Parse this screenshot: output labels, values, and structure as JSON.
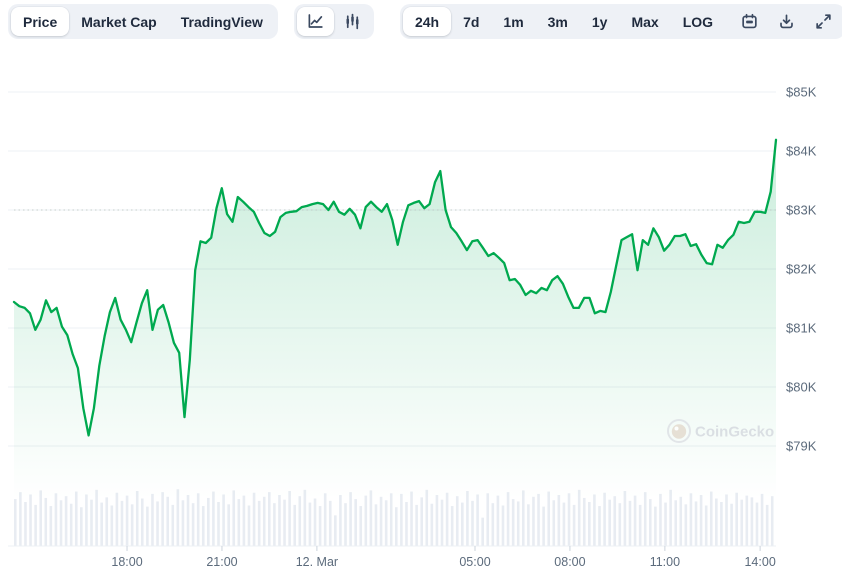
{
  "toolbar": {
    "metric_tabs": [
      {
        "label": "Price",
        "active": true
      },
      {
        "label": "Market Cap",
        "active": false
      },
      {
        "label": "TradingView",
        "active": false
      }
    ],
    "chart_type_icons": [
      "line-chart",
      "candlestick-chart"
    ],
    "ranges": [
      {
        "label": "24h",
        "active": true
      },
      {
        "label": "7d",
        "active": false
      },
      {
        "label": "1m",
        "active": false
      },
      {
        "label": "3m",
        "active": false
      },
      {
        "label": "1y",
        "active": false
      },
      {
        "label": "Max",
        "active": false
      },
      {
        "label": "LOG",
        "active": false
      }
    ],
    "action_icons": [
      "calendar",
      "download",
      "fullscreen"
    ]
  },
  "watermark": {
    "text": "CoinGecko"
  },
  "chart_data": {
    "type": "area",
    "title": "",
    "legend": false,
    "grid": true,
    "x_axis": {
      "range_hours": 24,
      "ticks": [
        {
          "label": "18:00",
          "hours_from_start": 3.56
        },
        {
          "label": "21:00",
          "hours_from_start": 6.55
        },
        {
          "label": "12. Mar",
          "hours_from_start": 9.54
        },
        {
          "label": "05:00",
          "hours_from_start": 14.52
        },
        {
          "label": "08:00",
          "hours_from_start": 17.51
        },
        {
          "label": "11:00",
          "hours_from_start": 20.5
        },
        {
          "label": "14:00",
          "hours_from_start": 23.5
        }
      ]
    },
    "y_axis": {
      "unit": "USD thousands",
      "range": [
        78.8,
        85.6
      ],
      "ticks": [
        {
          "label": "$85K",
          "value": 85
        },
        {
          "label": "$84K",
          "value": 84
        },
        {
          "label": "$83K",
          "value": 83
        },
        {
          "label": "$82K",
          "value": 82
        },
        {
          "label": "$81K",
          "value": 81
        },
        {
          "label": "$80K",
          "value": 80
        },
        {
          "label": "$79K",
          "value": 79
        }
      ]
    },
    "series": [
      {
        "name": "BTC price (USD thousands), ~10-min samples over 24h",
        "values": [
          81.44,
          81.37,
          81.34,
          81.25,
          80.97,
          81.14,
          81.47,
          81.27,
          81.34,
          81.02,
          80.88,
          80.56,
          80.32,
          79.64,
          79.18,
          79.64,
          80.36,
          80.86,
          81.27,
          81.51,
          81.14,
          80.97,
          80.76,
          81.1,
          81.42,
          81.64,
          80.97,
          81.31,
          81.39,
          81.1,
          80.75,
          80.58,
          79.49,
          80.46,
          81.98,
          82.47,
          82.44,
          82.53,
          83.03,
          83.37,
          82.93,
          82.8,
          83.22,
          83.14,
          83.05,
          82.97,
          82.78,
          82.61,
          82.56,
          82.63,
          82.88,
          82.95,
          82.97,
          82.98,
          83.05,
          83.07,
          83.1,
          83.12,
          83.1,
          83.0,
          83.14,
          82.97,
          82.92,
          83.02,
          82.92,
          82.69,
          83.05,
          83.14,
          83.05,
          82.97,
          83.1,
          82.83,
          82.41,
          82.8,
          83.08,
          83.12,
          83.15,
          83.03,
          83.1,
          83.47,
          83.66,
          83.0,
          82.71,
          82.61,
          82.47,
          82.32,
          82.47,
          82.49,
          82.36,
          82.22,
          82.27,
          82.19,
          82.1,
          81.81,
          81.83,
          81.73,
          81.56,
          81.63,
          81.59,
          81.68,
          81.64,
          81.81,
          81.88,
          81.75,
          81.53,
          81.34,
          81.34,
          81.51,
          81.51,
          81.25,
          81.29,
          81.27,
          81.61,
          82.05,
          82.49,
          82.54,
          82.59,
          81.98,
          82.49,
          82.41,
          82.69,
          82.54,
          82.31,
          82.41,
          82.56,
          82.56,
          82.59,
          82.39,
          82.42,
          82.24,
          82.1,
          82.08,
          82.41,
          82.36,
          82.49,
          82.58,
          82.8,
          82.78,
          82.8,
          82.97,
          82.97,
          82.95,
          83.31,
          84.19
        ]
      }
    ],
    "volume_bars": {
      "name": "volume (relative 0-1)",
      "values": [
        0.8,
        0.92,
        0.75,
        0.88,
        0.7,
        0.95,
        0.82,
        0.68,
        0.9,
        0.78,
        0.85,
        0.72,
        0.93,
        0.66,
        0.88,
        0.79,
        0.96,
        0.74,
        0.83,
        0.69,
        0.91,
        0.77,
        0.86,
        0.71,
        0.94,
        0.81,
        0.67,
        0.89,
        0.76,
        0.92,
        0.84,
        0.7,
        0.97,
        0.78,
        0.87,
        0.73,
        0.9,
        0.68,
        0.82,
        0.93,
        0.75,
        0.88,
        0.71,
        0.95,
        0.8,
        0.86,
        0.69,
        0.91,
        0.77,
        0.84,
        0.92,
        0.73,
        0.87,
        0.79,
        0.94,
        0.7,
        0.85,
        0.96,
        0.74,
        0.81,
        0.68,
        0.9,
        0.77,
        0.52,
        0.87,
        0.73,
        0.92,
        0.8,
        0.68,
        0.86,
        0.95,
        0.71,
        0.84,
        0.78,
        0.9,
        0.66,
        0.89,
        0.75,
        0.93,
        0.7,
        0.83,
        0.96,
        0.72,
        0.87,
        0.79,
        0.91,
        0.68,
        0.85,
        0.74,
        0.94,
        0.77,
        0.88,
        0.48,
        0.9,
        0.73,
        0.86,
        0.69,
        0.92,
        0.8,
        0.76,
        0.95,
        0.71,
        0.84,
        0.89,
        0.67,
        0.93,
        0.78,
        0.87,
        0.74,
        0.9,
        0.7,
        0.96,
        0.82,
        0.75,
        0.88,
        0.68,
        0.91,
        0.79,
        0.85,
        0.73,
        0.94,
        0.77,
        0.86,
        0.7,
        0.92,
        0.8,
        0.67,
        0.89,
        0.74,
        0.96,
        0.78,
        0.84,
        0.71,
        0.9,
        0.76,
        0.87,
        0.69,
        0.93,
        0.81,
        0.75,
        0.88,
        0.72,
        0.91,
        0.79,
        0.86,
        0.83,
        0.74,
        0.89,
        0.7,
        0.85
      ]
    },
    "colors": {
      "line": "#00a94f",
      "fill_top": "rgba(0,170,85,0.20)",
      "fill_bottom": "rgba(0,170,85,0)",
      "volume": "#e8ecf2",
      "grid": "#edf0f4",
      "axis_text": "#5c6b7c",
      "tick": "#ccd4dd"
    }
  }
}
